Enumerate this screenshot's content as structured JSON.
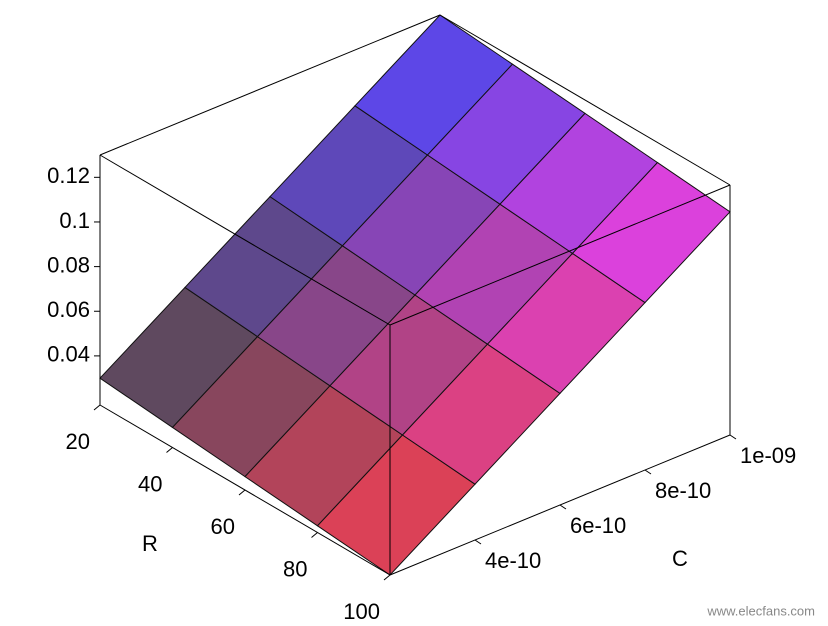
{
  "chart_data": {
    "type": "surface",
    "x_label": "R",
    "y_label": "C",
    "R": [
      20,
      40,
      60,
      80,
      100
    ],
    "C": [
      2e-10,
      4e-10,
      6e-10,
      8e-10,
      1e-09
    ],
    "z": [
      [
        0.03,
        0.055,
        0.08,
        0.105,
        0.13
      ],
      [
        0.027,
        0.052,
        0.077,
        0.102,
        0.127
      ],
      [
        0.024,
        0.049,
        0.074,
        0.099,
        0.124
      ],
      [
        0.021,
        0.046,
        0.071,
        0.096,
        0.121
      ],
      [
        0.018,
        0.043,
        0.068,
        0.093,
        0.118
      ]
    ],
    "xlim": [
      20,
      100
    ],
    "xticks": [
      20,
      40,
      60,
      80,
      100
    ],
    "ylim": [
      2e-10,
      1e-09
    ],
    "yticks": [
      {
        "value": 4e-10,
        "label": "4e-10"
      },
      {
        "value": 6e-10,
        "label": "6e-10"
      },
      {
        "value": 8e-10,
        "label": "8e-10"
      },
      {
        "value": 1e-09,
        "label": "1e-09"
      }
    ],
    "zlim": [
      0.018,
      0.13
    ],
    "zticks": [
      0.04,
      0.06,
      0.08,
      0.1,
      0.12
    ],
    "corner_colors": {
      "low_r_low_c": "#4a4a4a",
      "high_r_low_c": "#f04040",
      "low_r_high_c": "#4848ff",
      "high_r_high_c": "#f040f0"
    },
    "watermark": "www.elecfans.com"
  }
}
